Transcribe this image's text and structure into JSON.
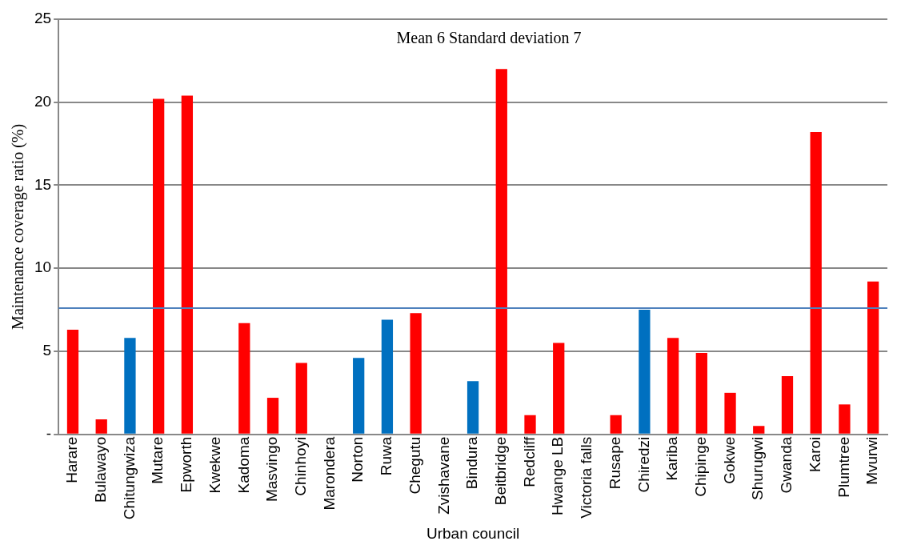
{
  "chart_data": {
    "type": "bar",
    "xlabel": "Urban council",
    "ylabel": "Maintenance coverage ratio (%)",
    "annotations": [
      "Mean 6 Standard deviation 7"
    ],
    "categories": [
      "Harare",
      "Bulawayo",
      "Chitungwiza",
      "Mutare",
      "Epworth",
      "Kwekwe",
      "Kadoma",
      "Masvingo",
      "Chinhoyi",
      "Marondera",
      "Norton",
      "Ruwa",
      "Chegutu",
      "Zvishavane",
      "Bindura",
      "Beitbridge",
      "Redcliff",
      "Hwange LB",
      "Victoria falls",
      "Rusape",
      "Chiredzi",
      "Kariba",
      "Chipinge",
      "Gokwe",
      "Shurugwi",
      "Gwanda",
      "Karoi",
      "Plumtree",
      "Mvurwi"
    ],
    "values": [
      6.3,
      0.9,
      5.8,
      20.2,
      20.4,
      0,
      6.7,
      2.2,
      4.3,
      0,
      4.6,
      6.9,
      7.3,
      0,
      3.2,
      22,
      1.15,
      5.5,
      0,
      1.15,
      7.5,
      5.8,
      4.9,
      2.5,
      0.5,
      3.5,
      18.2,
      1.8,
      9.2
    ],
    "colors": [
      "#ff0000",
      "#ff0000",
      "#0070c0",
      "#ff0000",
      "#ff0000",
      "#ff0000",
      "#ff0000",
      "#ff0000",
      "#ff0000",
      "#ff0000",
      "#0070c0",
      "#0070c0",
      "#ff0000",
      "#ff0000",
      "#0070c0",
      "#ff0000",
      "#ff0000",
      "#ff0000",
      "#ff0000",
      "#ff0000",
      "#0070c0",
      "#ff0000",
      "#ff0000",
      "#ff0000",
      "#ff0000",
      "#ff0000",
      "#ff0000",
      "#ff0000",
      "#ff0000"
    ],
    "ylim": [
      0,
      25
    ],
    "yticks": [
      {
        "value": 0,
        "label": "-"
      },
      5,
      10,
      15,
      20,
      25
    ],
    "ref_lines": [
      {
        "axis": "y",
        "value": 7.6,
        "color": "#4f81bd"
      }
    ],
    "grid": "y",
    "legend": false
  }
}
